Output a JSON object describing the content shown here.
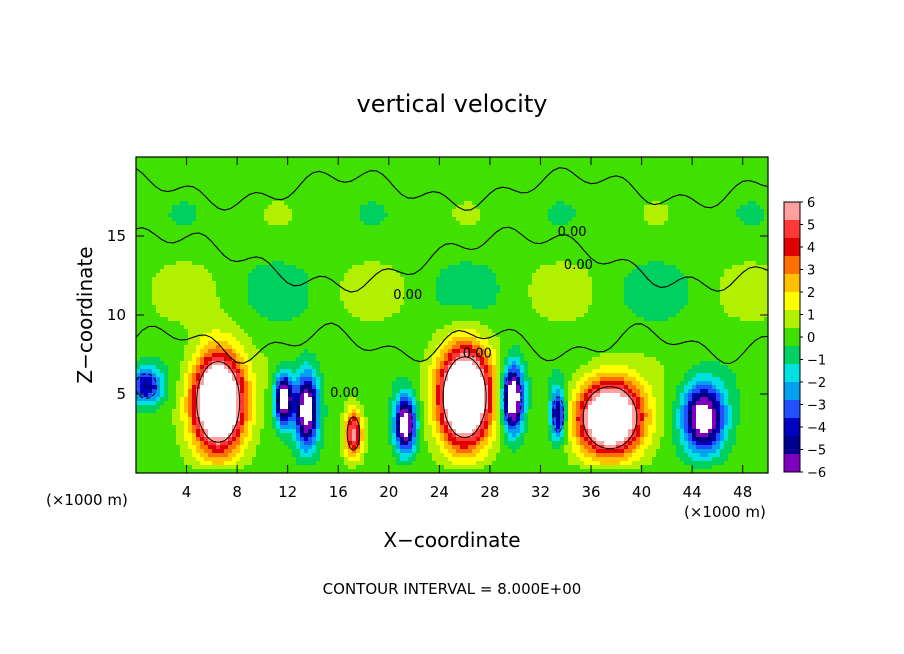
{
  "chart_data": {
    "type": "heatmap",
    "title": "vertical velocity",
    "xlabel": "X−coordinate",
    "ylabel": "Z−coordinate",
    "x_unit_left": "(×1000 m)",
    "x_unit_right": "(×1000 m)",
    "footer": "CONTOUR INTERVAL = 8.000E+00",
    "xlim": [
      0,
      50
    ],
    "ylim": [
      0,
      20
    ],
    "x_ticks": [
      4,
      8,
      12,
      16,
      20,
      24,
      28,
      32,
      36,
      40,
      44,
      48
    ],
    "x_tick_labels": [
      "4",
      "8",
      "12",
      "16",
      "20",
      "24",
      "28",
      "32",
      "36",
      "40",
      "44",
      "48"
    ],
    "y_ticks": [
      5,
      10,
      15
    ],
    "y_tick_labels": [
      "5",
      "10",
      "15"
    ],
    "contour_labels": [
      {
        "text": "0.00",
        "x": 34.5,
        "z": 15.0
      },
      {
        "text": "0.00",
        "x": 35.0,
        "z": 12.9
      },
      {
        "text": "0.00",
        "x": 21.5,
        "z": 11.0
      },
      {
        "text": "0.00",
        "x": 16.5,
        "z": 4.8
      },
      {
        "text": "0.00",
        "x": 27.0,
        "z": 7.3
      }
    ],
    "colorbar": {
      "levels": [
        6,
        5,
        4,
        3,
        2,
        1,
        0,
        -1,
        -2,
        -3,
        -4,
        -5,
        -6
      ],
      "labels": [
        "6",
        "5",
        "4",
        "3",
        "2",
        "1",
        "0",
        "−1",
        "−2",
        "−3",
        "−4",
        "−5",
        "−6"
      ],
      "colors": [
        "#ffa0a0",
        "#ff3838",
        "#e00000",
        "#ff7000",
        "#ffc000",
        "#ffff00",
        "#b0f000",
        "#40e000",
        "#00d060",
        "#00e0e0",
        "#00a0f0",
        "#2050ff",
        "#0000c0",
        "#000090",
        "#8000c0"
      ]
    },
    "cells": [
      {
        "x": 6.5,
        "z": 4.5,
        "amp": 12,
        "sx": 2.0,
        "sz": 3.0
      },
      {
        "x": 26.0,
        "z": 4.8,
        "amp": 12,
        "sx": 2.0,
        "sz": 3.0
      },
      {
        "x": 37.5,
        "z": 3.5,
        "amp": 11,
        "sx": 2.5,
        "sz": 2.3
      },
      {
        "x": 17.2,
        "z": 2.5,
        "amp": 6,
        "sx": 0.7,
        "sz": 1.5
      },
      {
        "x": 13.5,
        "z": 4.0,
        "amp": -8,
        "sx": 0.9,
        "sz": 2.3
      },
      {
        "x": 11.7,
        "z": 4.7,
        "amp": -8,
        "sx": 0.7,
        "sz": 1.6
      },
      {
        "x": 21.3,
        "z": 3.1,
        "amp": -8,
        "sx": 0.8,
        "sz": 1.7
      },
      {
        "x": 29.8,
        "z": 4.7,
        "amp": -9,
        "sx": 0.8,
        "sz": 2.0
      },
      {
        "x": 33.4,
        "z": 3.7,
        "amp": -6,
        "sx": 0.6,
        "sz": 1.6
      },
      {
        "x": 44.9,
        "z": 3.5,
        "amp": -8,
        "sx": 1.6,
        "sz": 2.1
      },
      {
        "x": 0.8,
        "z": 5.5,
        "amp": -5,
        "sx": 1.2,
        "sz": 1.1
      }
    ]
  }
}
